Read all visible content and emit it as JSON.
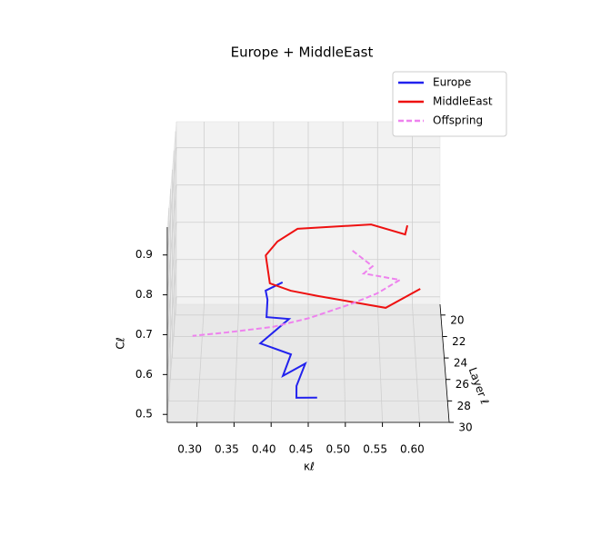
{
  "chart_data": {
    "type": "line3d",
    "title": "Europe + MiddleEast",
    "xlabel": "κℓ",
    "ylabel": "Layer ℓ",
    "zlabel": "Cℓ",
    "xlim": [
      0.26,
      0.64
    ],
    "ylim": [
      19,
      30
    ],
    "zlim": [
      0.48,
      0.97
    ],
    "xticks": [
      {
        "value": 0.3,
        "label": "0.30"
      },
      {
        "value": 0.35,
        "label": "0.35"
      },
      {
        "value": 0.4,
        "label": "0.40"
      },
      {
        "value": 0.45,
        "label": "0.45"
      },
      {
        "value": 0.5,
        "label": "0.50"
      },
      {
        "value": 0.55,
        "label": "0.55"
      },
      {
        "value": 0.6,
        "label": "0.60"
      }
    ],
    "yticks": [
      20,
      22,
      24,
      26,
      28,
      30
    ],
    "zticks": [
      0.5,
      0.6,
      0.7,
      0.8,
      0.9
    ],
    "grid": true,
    "legend": "upper right",
    "series": [
      {
        "name": "Europe",
        "color": "#2222ee",
        "dash": false,
        "x": [
          0.413,
          0.389,
          0.392,
          0.391,
          0.423,
          0.383,
          0.426,
          0.415,
          0.446,
          0.434,
          0.434,
          0.462
        ],
        "layer": [
          19,
          20,
          21,
          22,
          23,
          24,
          25,
          26,
          27,
          28,
          29,
          30
        ],
        "values": [
          0.539,
          0.545,
          0.549,
          0.531,
          0.554,
          0.518,
          0.517,
          0.489,
          0.548,
          0.518,
          0.515,
          0.542
        ]
      },
      {
        "name": "MiddleEast",
        "color": "#ee1111",
        "dash": false,
        "x": [
          0.592,
          0.588,
          0.539,
          0.435,
          0.407,
          0.391,
          0.397,
          0.426,
          0.464,
          0.555,
          0.601
        ],
        "layer": [
          20,
          21,
          22,
          23,
          24,
          25,
          26,
          27,
          28,
          29,
          30
        ],
        "values": [
          0.719,
          0.722,
          0.775,
          0.79,
          0.783,
          0.773,
          0.727,
          0.734,
          0.746,
          0.742,
          0.815
        ]
      },
      {
        "name": "Offspring",
        "color": "#ee82ee",
        "dash": true,
        "x": [
          0.513,
          0.541,
          0.528,
          0.578,
          0.546,
          0.508,
          0.451,
          0.402,
          0.34,
          0.294
        ],
        "layer": [
          21,
          22,
          23,
          24,
          25,
          26,
          27,
          28,
          29,
          30
        ],
        "values": [
          0.679,
          0.665,
          0.673,
          0.683,
          0.675,
          0.673,
          0.664,
          0.668,
          0.68,
          0.697
        ]
      }
    ]
  }
}
